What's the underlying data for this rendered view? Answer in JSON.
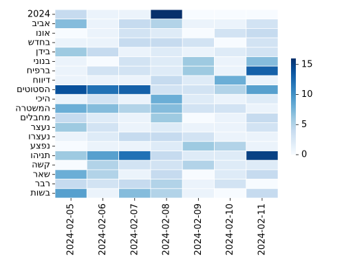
{
  "chart_data": {
    "type": "heatmap",
    "colormap": "Blues",
    "x": [
      "2024-02-05",
      "2024-02-06",
      "2024-02-07",
      "2024-02-08",
      "2024-02-09",
      "2024-02-10",
      "2024-02-11"
    ],
    "y": [
      "2024",
      "אביב",
      "אונו",
      "בחדש",
      "בידן",
      "בנוני",
      "ברפיח",
      "דיווח",
      "הסטוטים",
      "היכי",
      "המשטרה",
      "מחבלים",
      "נעצר",
      "נעצרו",
      "נפצע",
      "תניהו",
      "קשה",
      "שאר",
      "רבר",
      "בשות"
    ],
    "values": [
      [
        4,
        1,
        1,
        16,
        0,
        0,
        0
      ],
      [
        7,
        1,
        4,
        5,
        1,
        1,
        3
      ],
      [
        0,
        1,
        3,
        2,
        0,
        3,
        4
      ],
      [
        1,
        1,
        4,
        4,
        3,
        0,
        3
      ],
      [
        6,
        4,
        1,
        2,
        1,
        2,
        3
      ],
      [
        1,
        0,
        3,
        2,
        6,
        1,
        7
      ],
      [
        1,
        3,
        3,
        2,
        6,
        1,
        13
      ],
      [
        1,
        1,
        1,
        4,
        2,
        8,
        1
      ],
      [
        14,
        12,
        13,
        3,
        3,
        5,
        9
      ],
      [
        1,
        3,
        1,
        8,
        2,
        1,
        2
      ],
      [
        8,
        7,
        5,
        7,
        3,
        3,
        1
      ],
      [
        4,
        2,
        1,
        6,
        0,
        1,
        4
      ],
      [
        6,
        3,
        1,
        2,
        1,
        1,
        3
      ],
      [
        1,
        2,
        4,
        4,
        3,
        1,
        1
      ],
      [
        0,
        1,
        1,
        2,
        6,
        5,
        1
      ],
      [
        6,
        9,
        12,
        4,
        2,
        2,
        15
      ],
      [
        0,
        5,
        3,
        3,
        5,
        2,
        2
      ],
      [
        8,
        5,
        1,
        4,
        0,
        2,
        4
      ],
      [
        4,
        3,
        4,
        5,
        1,
        3,
        0
      ],
      [
        9,
        1,
        7,
        5,
        1,
        0,
        4
      ]
    ],
    "colorbar": {
      "min": 0,
      "max": 16,
      "ticks": [
        0,
        5,
        10,
        15
      ]
    }
  }
}
